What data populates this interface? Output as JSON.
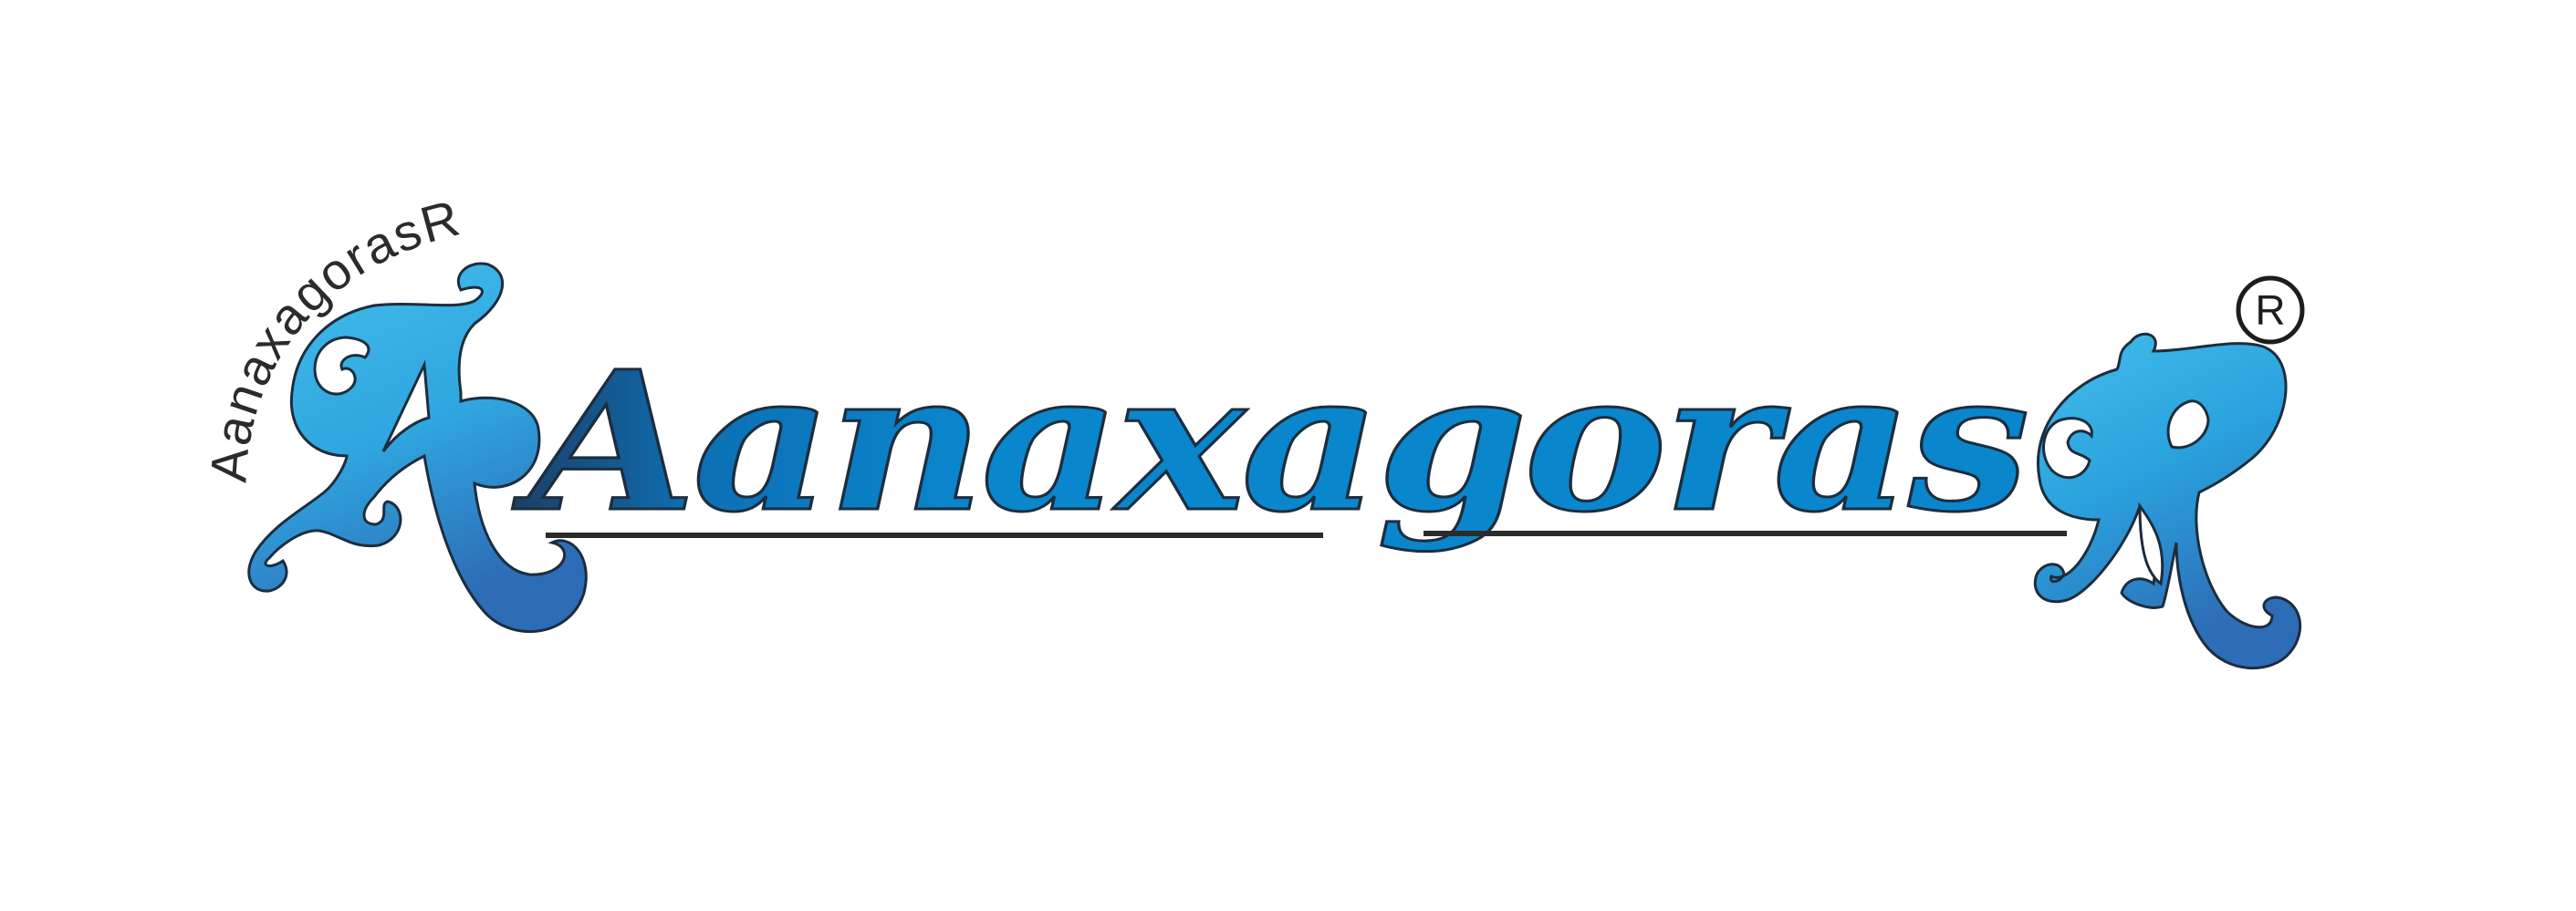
{
  "logo": {
    "arc_text": "AanaxagorasR",
    "wordmark": "Aanaxagoras",
    "registered_mark": "R",
    "colors": {
      "light_blue": "#3bb4e6",
      "mid_blue": "#0a8bd0",
      "deep_blue": "#2f6fb8",
      "navy": "#1c3f66",
      "underline": "#2b2b2b",
      "arc_text": "#2b2b2b"
    }
  }
}
